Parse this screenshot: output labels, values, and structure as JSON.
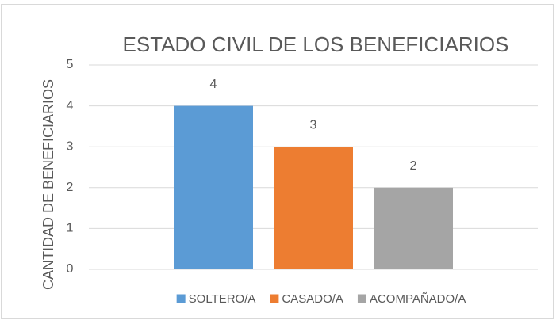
{
  "chart_data": {
    "type": "bar",
    "title": "ESTADO CIVIL DE LOS BENEFICIARIOS",
    "y_label": "CANTIDAD DE BENEFICIARIOS",
    "categories": [
      null
    ],
    "series": [
      {
        "name": "SOLTERO/A",
        "color": "#5b9bd5",
        "values": [
          4
        ]
      },
      {
        "name": "CASADO/A",
        "color": "#ed7d31",
        "values": [
          3
        ]
      },
      {
        "name": "ACOMPAÑADO/A",
        "color": "#a5a5a5",
        "values": [
          2
        ]
      }
    ],
    "ylim": [
      0,
      5
    ],
    "yticks": [
      0,
      1,
      2,
      3,
      4,
      5
    ],
    "grid": true,
    "legend": "bottom"
  }
}
